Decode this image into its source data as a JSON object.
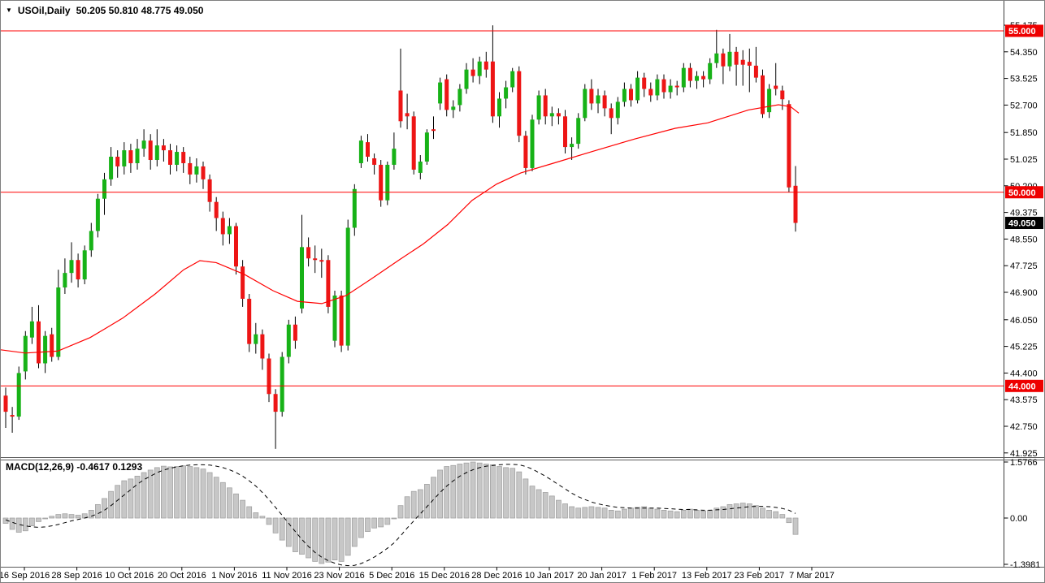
{
  "title": {
    "icon_glyph": "▼",
    "symbol": "USOil,Daily",
    "ohlc_text": "50.205 50.810 48.775 49.050"
  },
  "colors": {
    "background": "#ffffff",
    "bull_body": "#17b217",
    "bear_body": "#ed1515",
    "wick": "#000000",
    "trend_line": "#ff0000",
    "hline": "#ff0000",
    "hline_label_bg": "#ee0000",
    "current_label_bg": "#000000",
    "label_text": "#ffffff",
    "axis_text": "#000000",
    "hist_fill": "#c7c7c7",
    "hist_border": "#9f9f9f",
    "signal_line": "#000000",
    "separator": "#5a5a5a"
  },
  "chart_data": {
    "type": "candlestick-with-macd",
    "title": "USOil,Daily",
    "current_ohlc": {
      "open": "50.205",
      "high": "50.810",
      "low": "48.775",
      "close": "49.050"
    },
    "price_axis_ticks": [
      "55.175",
      "54.350",
      "53.525",
      "52.700",
      "51.850",
      "51.025",
      "50.200",
      "49.375",
      "48.550",
      "47.725",
      "46.900",
      "46.050",
      "45.225",
      "44.400",
      "43.575",
      "42.750",
      "41.925"
    ],
    "price_axis_range": [
      41.925,
      55.175
    ],
    "time_axis_labels": [
      "16 Sep 2016",
      "28 Sep 2016",
      "10 Oct 2016",
      "20 Oct 2016",
      "1 Nov 2016",
      "11 Nov 2016",
      "23 Nov 2016",
      "5 Dec 2016",
      "15 Dec 2016",
      "28 Dec 2016",
      "10 Jan 2017",
      "20 Jan 2017",
      "1 Feb 2017",
      "13 Feb 2017",
      "23 Feb 2017",
      "7 Mar 2017"
    ],
    "horizontal_lines": [
      {
        "price": 55.0,
        "label": "55.000"
      },
      {
        "price": 50.0,
        "label": "50.000"
      },
      {
        "price": 44.0,
        "label": "44.000"
      }
    ],
    "current_price": {
      "value": 49.05,
      "label": "49.050"
    },
    "candles": [
      [
        43.7,
        43.95,
        42.7,
        43.2
      ],
      [
        43.1,
        43.35,
        42.55,
        43.05
      ],
      [
        43.05,
        44.6,
        42.95,
        44.4
      ],
      [
        44.45,
        45.7,
        44.2,
        45.55
      ],
      [
        45.5,
        46.45,
        45.3,
        46.0
      ],
      [
        46.0,
        46.5,
        44.55,
        44.7
      ],
      [
        44.7,
        45.7,
        44.4,
        45.55
      ],
      [
        45.6,
        45.8,
        44.75,
        44.9
      ],
      [
        44.9,
        47.6,
        44.8,
        47.05
      ],
      [
        47.05,
        47.95,
        46.85,
        47.5
      ],
      [
        47.5,
        48.45,
        47.2,
        47.9
      ],
      [
        47.9,
        48.1,
        47.05,
        47.3
      ],
      [
        47.3,
        48.35,
        47.15,
        48.2
      ],
      [
        48.2,
        49.05,
        48.0,
        48.8
      ],
      [
        48.8,
        49.95,
        48.6,
        49.8
      ],
      [
        49.8,
        50.6,
        49.3,
        50.4
      ],
      [
        50.4,
        51.4,
        50.2,
        51.1
      ],
      [
        51.1,
        51.3,
        50.45,
        50.8
      ],
      [
        50.8,
        51.55,
        50.55,
        51.3
      ],
      [
        51.3,
        51.5,
        50.6,
        50.9
      ],
      [
        50.9,
        51.65,
        50.7,
        51.35
      ],
      [
        51.35,
        51.95,
        51.1,
        51.6
      ],
      [
        51.6,
        51.8,
        50.7,
        51.0
      ],
      [
        51.0,
        51.95,
        50.8,
        51.45
      ],
      [
        51.45,
        51.65,
        50.95,
        51.3
      ],
      [
        51.3,
        51.5,
        50.55,
        50.85
      ],
      [
        50.85,
        51.45,
        50.65,
        51.25
      ],
      [
        51.25,
        51.4,
        50.6,
        50.9
      ],
      [
        50.9,
        51.1,
        50.25,
        50.55
      ],
      [
        50.55,
        51.05,
        50.3,
        50.8
      ],
      [
        50.8,
        50.95,
        50.1,
        50.4
      ],
      [
        50.4,
        50.55,
        49.4,
        49.7
      ],
      [
        49.7,
        49.85,
        48.8,
        49.2
      ],
      [
        49.2,
        49.4,
        48.35,
        48.7
      ],
      [
        48.7,
        49.2,
        48.4,
        48.95
      ],
      [
        48.95,
        49.05,
        47.45,
        47.7
      ],
      [
        47.7,
        47.9,
        46.45,
        46.7
      ],
      [
        46.7,
        46.85,
        45.05,
        45.3
      ],
      [
        45.3,
        45.95,
        45.0,
        45.6
      ],
      [
        45.6,
        45.75,
        44.5,
        44.85
      ],
      [
        44.85,
        45.0,
        43.5,
        43.75
      ],
      [
        43.75,
        43.9,
        42.05,
        43.2
      ],
      [
        43.2,
        45.05,
        43.05,
        44.9
      ],
      [
        44.9,
        46.05,
        44.7,
        45.9
      ],
      [
        45.9,
        46.15,
        45.15,
        45.4
      ],
      [
        46.4,
        49.3,
        46.25,
        48.3
      ],
      [
        48.3,
        48.6,
        47.7,
        47.95
      ],
      [
        47.95,
        48.35,
        47.5,
        47.9
      ],
      [
        47.9,
        48.25,
        47.35,
        47.85
      ],
      [
        47.9,
        48.05,
        46.25,
        46.45
      ],
      [
        45.4,
        46.95,
        45.2,
        46.8
      ],
      [
        46.8,
        46.95,
        45.05,
        45.25
      ],
      [
        45.25,
        49.15,
        45.1,
        48.9
      ],
      [
        48.9,
        50.25,
        48.65,
        50.1
      ],
      [
        50.9,
        51.75,
        50.75,
        51.6
      ],
      [
        51.55,
        51.8,
        50.95,
        51.1
      ],
      [
        51.05,
        51.2,
        50.55,
        50.85
      ],
      [
        50.85,
        51.0,
        49.55,
        49.75
      ],
      [
        49.75,
        50.95,
        49.6,
        50.85
      ],
      [
        50.85,
        51.85,
        50.7,
        51.35
      ],
      [
        53.15,
        54.45,
        52.0,
        52.2
      ],
      [
        52.45,
        53.05,
        51.95,
        52.35
      ],
      [
        52.35,
        52.5,
        50.55,
        50.7
      ],
      [
        50.6,
        51.15,
        50.4,
        50.95
      ],
      [
        50.95,
        51.95,
        50.85,
        51.85
      ],
      [
        51.95,
        52.35,
        51.65,
        51.9
      ],
      [
        52.75,
        53.55,
        52.55,
        53.4
      ],
      [
        53.5,
        53.65,
        52.35,
        52.55
      ],
      [
        52.55,
        52.85,
        52.3,
        52.65
      ],
      [
        52.7,
        53.35,
        52.5,
        53.2
      ],
      [
        53.2,
        54.0,
        53.05,
        53.8
      ],
      [
        53.8,
        54.15,
        53.4,
        53.6
      ],
      [
        53.6,
        54.2,
        53.35,
        54.05
      ],
      [
        54.05,
        54.35,
        53.55,
        53.8
      ],
      [
        54.05,
        55.17,
        52.15,
        52.35
      ],
      [
        52.35,
        53.1,
        52.0,
        52.9
      ],
      [
        52.9,
        53.45,
        52.6,
        53.25
      ],
      [
        53.25,
        53.85,
        53.1,
        53.75
      ],
      [
        53.75,
        53.9,
        51.55,
        51.75
      ],
      [
        51.75,
        51.9,
        50.55,
        50.75
      ],
      [
        50.75,
        52.4,
        50.65,
        52.25
      ],
      [
        52.25,
        53.15,
        52.1,
        53.0
      ],
      [
        53.0,
        53.2,
        52.1,
        52.35
      ],
      [
        52.35,
        52.65,
        52.05,
        52.45
      ],
      [
        52.45,
        52.6,
        52.1,
        52.35
      ],
      [
        52.35,
        52.55,
        51.2,
        51.4
      ],
      [
        51.4,
        51.7,
        51.0,
        51.5
      ],
      [
        51.5,
        52.45,
        51.35,
        52.3
      ],
      [
        52.3,
        53.35,
        52.2,
        53.2
      ],
      [
        53.2,
        53.5,
        52.55,
        52.75
      ],
      [
        52.75,
        53.2,
        52.45,
        53.0
      ],
      [
        53.0,
        53.15,
        52.35,
        52.6
      ],
      [
        52.6,
        52.75,
        51.8,
        52.3
      ],
      [
        52.3,
        52.95,
        52.1,
        52.8
      ],
      [
        52.8,
        53.4,
        52.65,
        53.2
      ],
      [
        53.2,
        53.35,
        52.65,
        52.85
      ],
      [
        52.85,
        53.75,
        52.75,
        53.55
      ],
      [
        53.55,
        53.7,
        52.95,
        53.2
      ],
      [
        53.2,
        53.4,
        52.8,
        53.0
      ],
      [
        53.0,
        53.65,
        52.85,
        53.5
      ],
      [
        53.5,
        53.65,
        52.9,
        53.1
      ],
      [
        53.1,
        53.5,
        52.9,
        53.3
      ],
      [
        53.3,
        53.45,
        53.0,
        53.25
      ],
      [
        53.25,
        54.0,
        53.1,
        53.85
      ],
      [
        53.85,
        54.0,
        53.25,
        53.45
      ],
      [
        53.45,
        53.75,
        53.2,
        53.6
      ],
      [
        53.6,
        53.75,
        53.25,
        53.5
      ],
      [
        53.5,
        54.15,
        53.35,
        54.0
      ],
      [
        54.0,
        55.03,
        53.85,
        54.3
      ],
      [
        54.3,
        54.45,
        53.35,
        53.9
      ],
      [
        53.9,
        54.9,
        53.75,
        54.35
      ],
      [
        54.35,
        54.5,
        53.3,
        53.95
      ],
      [
        54.1,
        54.4,
        53.3,
        53.95
      ],
      [
        54.04,
        54.45,
        53.1,
        53.92
      ],
      [
        53.92,
        54.5,
        53.4,
        53.55
      ],
      [
        53.62,
        53.8,
        52.3,
        52.42
      ],
      [
        52.48,
        53.35,
        52.3,
        53.2
      ],
      [
        53.3,
        54.0,
        53.0,
        53.2
      ],
      [
        53.15,
        53.3,
        52.55,
        52.88
      ],
      [
        52.73,
        52.85,
        50.0,
        50.15
      ],
      [
        50.2,
        50.81,
        48.78,
        49.05
      ]
    ],
    "ma_points": [
      [
        0,
        45.12
      ],
      [
        30,
        45.02
      ],
      [
        70,
        45.08
      ],
      [
        110,
        45.5
      ],
      [
        150,
        46.1
      ],
      [
        190,
        46.85
      ],
      [
        225,
        47.6
      ],
      [
        245,
        47.88
      ],
      [
        265,
        47.82
      ],
      [
        300,
        47.45
      ],
      [
        335,
        46.95
      ],
      [
        365,
        46.62
      ],
      [
        395,
        46.55
      ],
      [
        425,
        46.8
      ],
      [
        455,
        47.3
      ],
      [
        490,
        47.9
      ],
      [
        520,
        48.4
      ],
      [
        550,
        49.0
      ],
      [
        580,
        49.75
      ],
      [
        610,
        50.25
      ],
      [
        640,
        50.6
      ],
      [
        680,
        50.9
      ],
      [
        730,
        51.28
      ],
      [
        780,
        51.65
      ],
      [
        830,
        51.98
      ],
      [
        870,
        52.15
      ],
      [
        920,
        52.55
      ],
      [
        957,
        52.71
      ],
      [
        972,
        52.65
      ],
      [
        982,
        52.45
      ]
    ],
    "macd": {
      "name": "MACD(12,26,9)",
      "values_text": "-0.4617 0.1293",
      "macd_value": -0.4617,
      "signal_value": 0.1293,
      "axis_ticks": [
        {
          "v": 1.5766,
          "label": "1.5766"
        },
        {
          "v": 0,
          "label": "0.00"
        },
        {
          "v": -1.3981,
          "label": "-1.3981"
        }
      ],
      "histogram": [
        -0.15,
        -0.32,
        -0.4,
        -0.36,
        -0.22,
        -0.1,
        -0.02,
        0.05,
        0.1,
        0.12,
        0.1,
        0.08,
        0.12,
        0.22,
        0.38,
        0.55,
        0.75,
        0.92,
        1.05,
        1.1,
        1.18,
        1.28,
        1.35,
        1.42,
        1.46,
        1.44,
        1.45,
        1.47,
        1.45,
        1.42,
        1.38,
        1.28,
        1.15,
        1.0,
        0.85,
        0.68,
        0.5,
        0.32,
        0.15,
        0.05,
        -0.18,
        -0.42,
        -0.62,
        -0.8,
        -0.95,
        -1.02,
        -1.12,
        -1.22,
        -1.28,
        -1.24,
        -1.18,
        -1.22,
        -1.05,
        -0.8,
        -0.55,
        -0.38,
        -0.28,
        -0.25,
        -0.18,
        -0.02,
        0.35,
        0.6,
        0.75,
        0.8,
        0.95,
        1.15,
        1.35,
        1.45,
        1.48,
        1.52,
        1.55,
        1.5766,
        1.55,
        1.52,
        1.5,
        1.45,
        1.42,
        1.4,
        1.3,
        1.1,
        0.9,
        0.8,
        0.72,
        0.62,
        0.5,
        0.4,
        0.32,
        0.28,
        0.3,
        0.32,
        0.3,
        0.28,
        0.22,
        0.2,
        0.25,
        0.28,
        0.3,
        0.32,
        0.28,
        0.25,
        0.22,
        0.2,
        0.18,
        0.22,
        0.25,
        0.22,
        0.2,
        0.22,
        0.28,
        0.32,
        0.38,
        0.4,
        0.42,
        0.4,
        0.35,
        0.28,
        0.22,
        0.18,
        0.1,
        -0.13,
        -0.4617
      ],
      "signal": [
        -0.05,
        -0.12,
        -0.18,
        -0.22,
        -0.25,
        -0.26,
        -0.25,
        -0.22,
        -0.18,
        -0.13,
        -0.08,
        -0.04,
        0.0,
        0.05,
        0.12,
        0.22,
        0.35,
        0.5,
        0.65,
        0.8,
        0.95,
        1.08,
        1.18,
        1.28,
        1.35,
        1.4,
        1.44,
        1.47,
        1.49,
        1.5,
        1.5,
        1.49,
        1.46,
        1.42,
        1.36,
        1.28,
        1.18,
        1.05,
        0.9,
        0.72,
        0.52,
        0.3,
        0.08,
        -0.15,
        -0.38,
        -0.6,
        -0.8,
        -0.97,
        -1.1,
        -1.2,
        -1.27,
        -1.32,
        -1.34,
        -1.33,
        -1.28,
        -1.2,
        -1.1,
        -0.98,
        -0.85,
        -0.7,
        -0.5,
        -0.28,
        -0.08,
        0.12,
        0.32,
        0.52,
        0.72,
        0.9,
        1.05,
        1.18,
        1.28,
        1.36,
        1.42,
        1.46,
        1.48,
        1.5,
        1.51,
        1.51,
        1.5,
        1.45,
        1.38,
        1.28,
        1.18,
        1.06,
        0.94,
        0.82,
        0.7,
        0.6,
        0.52,
        0.45,
        0.4,
        0.36,
        0.33,
        0.3,
        0.29,
        0.28,
        0.28,
        0.28,
        0.28,
        0.28,
        0.27,
        0.26,
        0.25,
        0.24,
        0.24,
        0.23,
        0.22,
        0.22,
        0.23,
        0.24,
        0.26,
        0.28,
        0.3,
        0.32,
        0.33,
        0.33,
        0.32,
        0.3,
        0.27,
        0.22,
        0.1293
      ]
    }
  }
}
